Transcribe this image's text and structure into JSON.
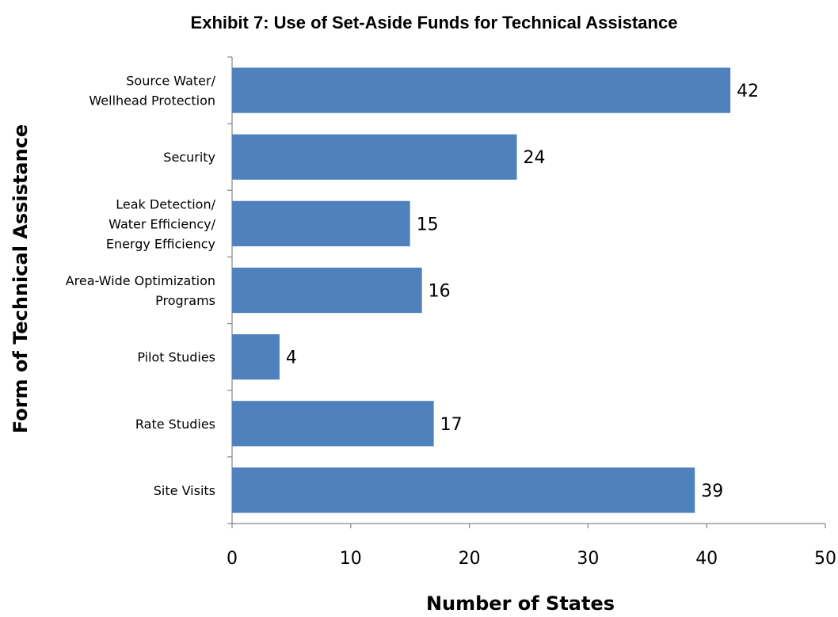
{
  "chart_data": {
    "type": "bar",
    "orientation": "horizontal",
    "title": "Exhibit 7: Use of Set-Aside Funds for Technical Assistance",
    "xlabel": "Number of States",
    "ylabel": "Form of Technical Assistance",
    "categories": [
      [
        "Source Water/",
        "Wellhead Protection"
      ],
      [
        "Security"
      ],
      [
        "Leak Detection/",
        "Water Efficiency/",
        "Energy Efficiency"
      ],
      [
        "Area-Wide Optimization",
        "Programs"
      ],
      [
        "Pilot Studies"
      ],
      [
        "Rate Studies"
      ],
      [
        "Site Visits"
      ]
    ],
    "values": [
      42,
      24,
      15,
      16,
      4,
      17,
      39
    ],
    "data_labels": [
      "42",
      "24",
      "15",
      "16",
      "4",
      "17",
      "39"
    ],
    "xlim": [
      0,
      50
    ],
    "xticks": [
      0,
      10,
      20,
      30,
      40,
      50
    ],
    "xtick_labels": [
      "0",
      "10",
      "20",
      "30",
      "40",
      "50"
    ],
    "grid": false,
    "legend": "none",
    "bar_color": "#4F81BD"
  }
}
